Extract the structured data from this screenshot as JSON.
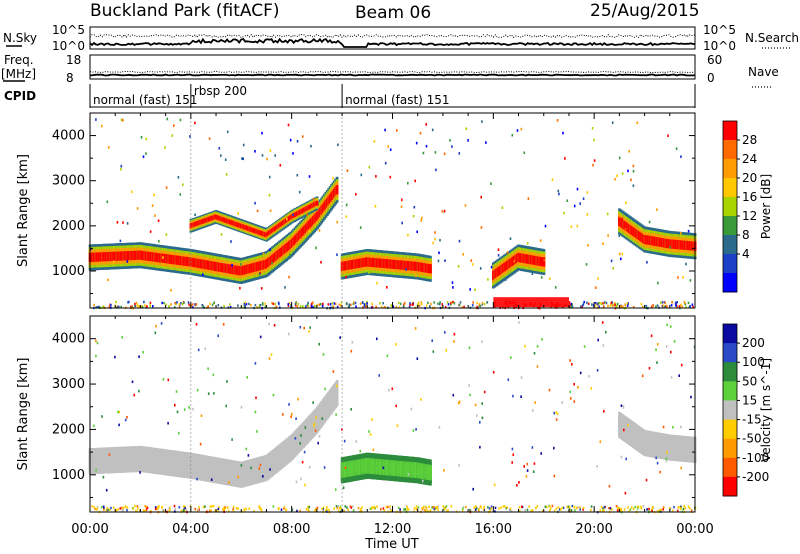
{
  "header": {
    "title": "Buckland Park (fitACF)",
    "beam": "Beam 06",
    "date": "25/Aug/2015"
  },
  "noise_panel": {
    "left_label": "N.Sky",
    "right_label": "N.Search",
    "left_ticks": [
      "10^5",
      "10^0"
    ],
    "right_ticks": [
      "10^5",
      "10^0"
    ]
  },
  "freq_panel": {
    "left_label": "Freq.",
    "left_unit": "[MHz]",
    "left_ticks": [
      "18",
      "8"
    ],
    "right_label": "Nave",
    "right_ticks": [
      "60",
      "0"
    ]
  },
  "cpid": {
    "label": "CPID",
    "segments": [
      {
        "name": "normal (fast) 151",
        "start": 0.0,
        "end": 4.0
      },
      {
        "name": "rbsp 200",
        "start": 4.0,
        "end": 10.0
      },
      {
        "name": "normal (fast) 151",
        "start": 10.0,
        "end": 24.0
      }
    ]
  },
  "chart_data": [
    {
      "type": "heatmap",
      "title": "",
      "parameter": "Power",
      "xlabel": "Time UT",
      "ylabel": "Slant Range [km]",
      "xlim": [
        0,
        24
      ],
      "ylim": [
        180,
        4500
      ],
      "xticks": [
        "00:00",
        "04:00",
        "08:00",
        "12:00",
        "16:00",
        "20:00",
        "00:00"
      ],
      "yticks": [
        1000,
        2000,
        3000,
        4000
      ],
      "colorbar": {
        "label": "Power [dB]",
        "ticks": [
          "28",
          "24",
          "20",
          "16",
          "12",
          "8",
          "4"
        ],
        "colors": [
          "#ff0000",
          "#ff6a00",
          "#ff9d00",
          "#ffc800",
          "#aad400",
          "#3a9a3a",
          "#2b6a8a",
          "#1c3fc8",
          "#0000ff"
        ]
      },
      "features": [
        {
          "name": "main band",
          "x": [
            0,
            2,
            4,
            5,
            6,
            7,
            8,
            9,
            9.8
          ],
          "y": [
            1300,
            1350,
            1200,
            1100,
            1000,
            1150,
            1600,
            2200,
            2800
          ]
        },
        {
          "name": "upper arc",
          "x": [
            4,
            5,
            6,
            7,
            8,
            9
          ],
          "y": [
            2000,
            2200,
            2000,
            1800,
            2200,
            2500
          ]
        },
        {
          "name": "post-midday patch",
          "x": [
            10,
            11,
            12,
            13,
            13.5
          ],
          "y": [
            1100,
            1200,
            1150,
            1100,
            1050
          ]
        },
        {
          "name": "afternoon patch",
          "x": [
            16,
            17,
            18
          ],
          "y": [
            900,
            1300,
            1200
          ]
        },
        {
          "name": "evening band",
          "x": [
            21,
            21.5,
            22,
            23,
            24
          ],
          "y": [
            2100,
            1900,
            1700,
            1600,
            1550
          ]
        },
        {
          "name": "near-range echoes",
          "x": [
            16,
            19
          ],
          "y": [
            300,
            300
          ]
        }
      ]
    },
    {
      "type": "heatmap",
      "title": "",
      "parameter": "Velocity",
      "xlabel": "Time UT",
      "ylabel": "Slant Range [km]",
      "xlim": [
        0,
        24
      ],
      "ylim": [
        180,
        4500
      ],
      "xticks": [
        "00:00",
        "04:00",
        "08:00",
        "12:00",
        "16:00",
        "20:00",
        "00:00"
      ],
      "yticks": [
        1000,
        2000,
        3000,
        4000
      ],
      "colorbar": {
        "label": "Velocity [m s^-1]",
        "ticks": [
          "200",
          "100",
          "50",
          "15",
          "-15",
          "-50",
          "-100",
          "-200"
        ],
        "colors": [
          "#0a0aa0",
          "#2a4ac8",
          "#2c8c3c",
          "#5cd03a",
          "#c0c0c0",
          "#ffcc00",
          "#ff9a00",
          "#ff5a00",
          "#ff0000"
        ]
      },
      "features": [
        {
          "name": "main band (ground scatter)",
          "x": [
            0,
            2,
            4,
            5,
            6,
            7,
            8,
            9,
            9.8
          ],
          "y": [
            1300,
            1350,
            1200,
            1100,
            1000,
            1150,
            1600,
            2200,
            2800
          ]
        },
        {
          "name": "post-midday patch",
          "x": [
            10,
            11,
            12,
            13,
            13.5
          ],
          "y": [
            1100,
            1200,
            1150,
            1100,
            1050
          ]
        },
        {
          "name": "evening band",
          "x": [
            21,
            21.5,
            22,
            23,
            24
          ],
          "y": [
            2100,
            1900,
            1700,
            1600,
            1550
          ]
        }
      ]
    }
  ]
}
